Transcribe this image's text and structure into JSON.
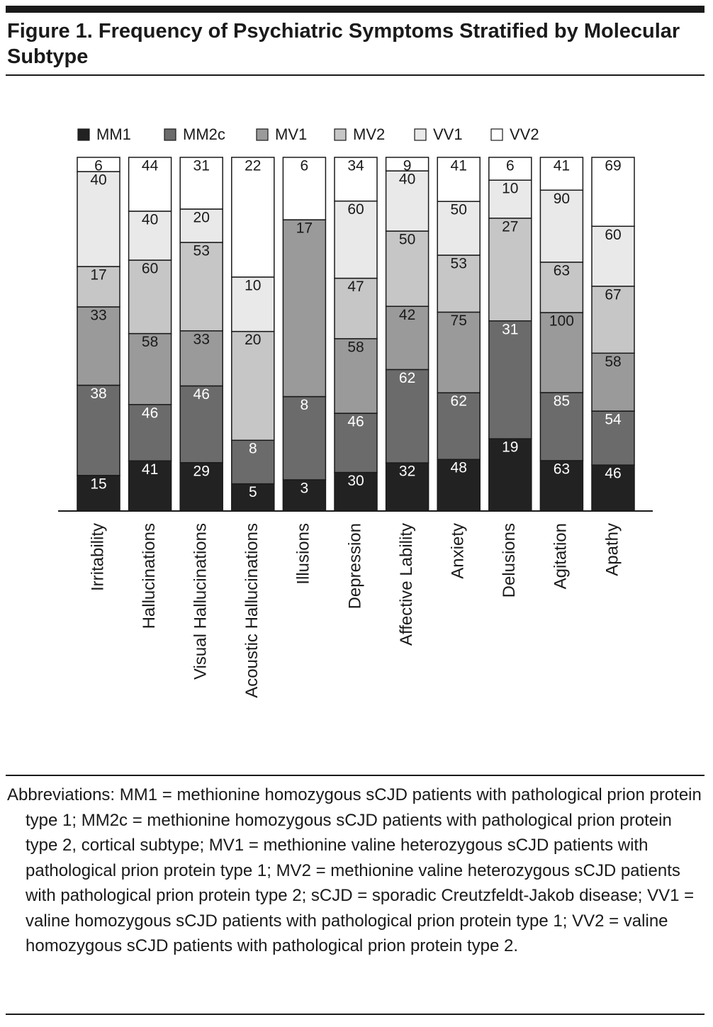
{
  "chart_data": {
    "type": "stacked_bar_percent",
    "title": "Figure 1. Frequency of Psychiatric Symptoms Stratified by Molecular Subtype",
    "categories": [
      "Irritability",
      "Hallucinations",
      "Visual Hallucinations",
      "Acoustic Hallucinations",
      "Illusions",
      "Depression",
      "Affective Lability",
      "Anxiety",
      "Delusions",
      "Agitation",
      "Apathy"
    ],
    "series": [
      {
        "name": "MM1",
        "color": "#222222",
        "values": [
          15,
          41,
          29,
          5,
          3,
          30,
          32,
          48,
          19,
          63,
          46
        ]
      },
      {
        "name": "MM2c",
        "color": "#6b6b6b",
        "values": [
          38,
          46,
          46,
          8,
          8,
          46,
          62,
          62,
          31,
          85,
          54
        ]
      },
      {
        "name": "MV1",
        "color": "#9a9a9a",
        "values": [
          33,
          58,
          33,
          null,
          17,
          58,
          42,
          75,
          null,
          100,
          58
        ]
      },
      {
        "name": "MV2",
        "color": "#c6c6c6",
        "values": [
          17,
          60,
          53,
          20,
          null,
          47,
          50,
          53,
          27,
          63,
          67
        ]
      },
      {
        "name": "VV1",
        "color": "#e9e9e9",
        "values": [
          40,
          40,
          20,
          10,
          null,
          60,
          40,
          50,
          10,
          90,
          60
        ]
      },
      {
        "name": "VV2",
        "color": "#ffffff",
        "values": [
          6,
          44,
          31,
          22,
          6,
          34,
          9,
          41,
          6,
          41,
          69
        ]
      }
    ],
    "footnote": "Abbreviations: MM1 = methionine homozygous sCJD patients with pathological prion protein type 1; MM2c = methionine homozygous sCJD patients with pathological prion protein type 2, cortical subtype; MV1 = methionine valine heterozygous sCJD patients with pathological prion protein type 1; MV2 = methionine valine heterozygous sCJD patients with pathological prion protein type 2; sCJD = sporadic Creutzfeldt-Jakob disease; VV1 = valine homozygous sCJD patients with pathological prion protein type 1; VV2 = valine homozygous sCJD patients with pathological prion protein type 2."
  }
}
